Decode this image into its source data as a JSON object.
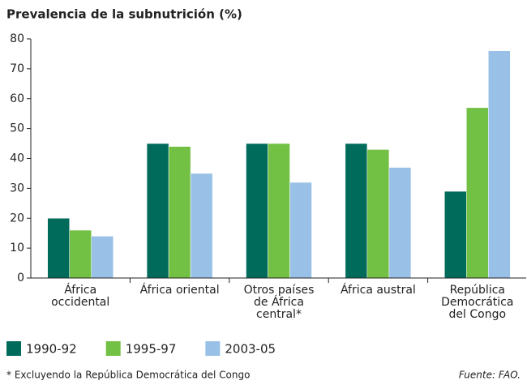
{
  "chart_data": {
    "type": "bar",
    "title": "Prevalencia de la subnutrición (%)",
    "categories": [
      "África occidental",
      "África oriental",
      "Otros países de África central*",
      "África austral",
      "República Democrática del Congo"
    ],
    "series": [
      {
        "name": "1990-92",
        "color": "#006a5b",
        "values": [
          20,
          45,
          45,
          45,
          29
        ]
      },
      {
        "name": "1995-97",
        "color": "#72c044",
        "values": [
          16,
          44,
          45,
          43,
          57
        ]
      },
      {
        "name": "2003-05",
        "color": "#99c0e6",
        "values": [
          14,
          35,
          32,
          37,
          76
        ]
      }
    ],
    "ylim": [
      0,
      80
    ],
    "yticks": [
      0,
      10,
      20,
      30,
      40,
      50,
      60,
      70,
      80
    ],
    "footnote": "* Excluyendo la República Democrática del Congo",
    "source": "Fuente: FAO."
  }
}
